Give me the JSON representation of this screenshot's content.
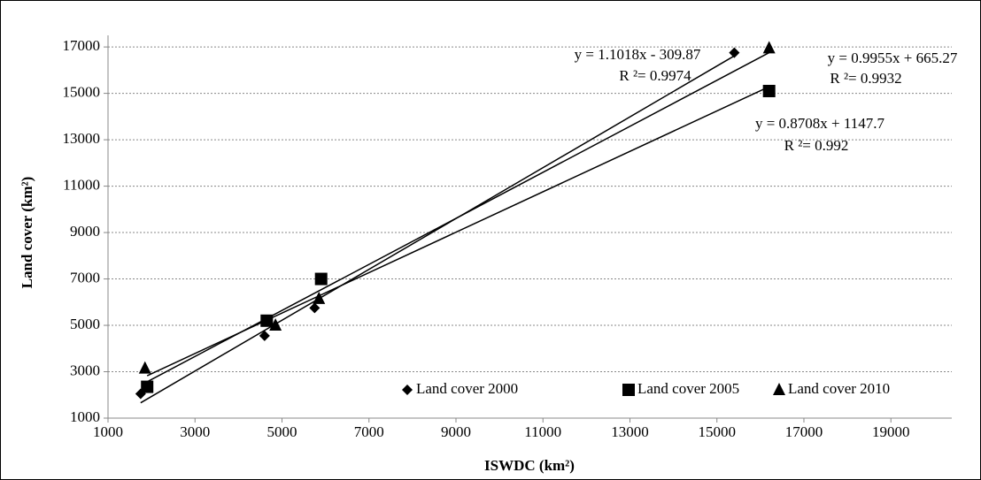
{
  "chart_data": {
    "type": "scatter",
    "x_label": "ISWDC (km²)",
    "y_label": "Land cover (km²)",
    "xlim": [
      1000,
      20400
    ],
    "ylim": [
      1000,
      17500
    ],
    "xticks": [
      1000,
      3000,
      5000,
      7000,
      9000,
      11000,
      13000,
      15000,
      17000,
      19000
    ],
    "yticks": [
      1000,
      3000,
      5000,
      7000,
      9000,
      11000,
      13000,
      15000,
      17000
    ],
    "grid": true,
    "trendline": "linear",
    "legend": "bottom",
    "series": [
      {
        "name": "Land cover 2000",
        "color": "#000000",
        "marker": "diamond",
        "x": [
          1750,
          4600,
          5750,
          15400
        ],
        "y": [
          2050,
          4550,
          5750,
          16750
        ]
      },
      {
        "name": "Land cover 2005",
        "color": "#000000",
        "marker": "square",
        "x": [
          1900,
          4650,
          5900,
          16200
        ],
        "y": [
          2350,
          5200,
          7000,
          15100
        ]
      },
      {
        "name": "Land cover 2010",
        "color": "#000000",
        "marker": "triangle",
        "x": [
          1850,
          4850,
          5850,
          16200
        ],
        "y": [
          3150,
          5000,
          6150,
          16950
        ]
      }
    ],
    "annotations": [
      "y = 1.1018x - 309.87",
      "R ²= 0.9974",
      "y = 0.9955x + 665.27",
      "R ²= 0.9932",
      "y = 0.8708x + 1147.7",
      "R ²= 0.992"
    ]
  }
}
